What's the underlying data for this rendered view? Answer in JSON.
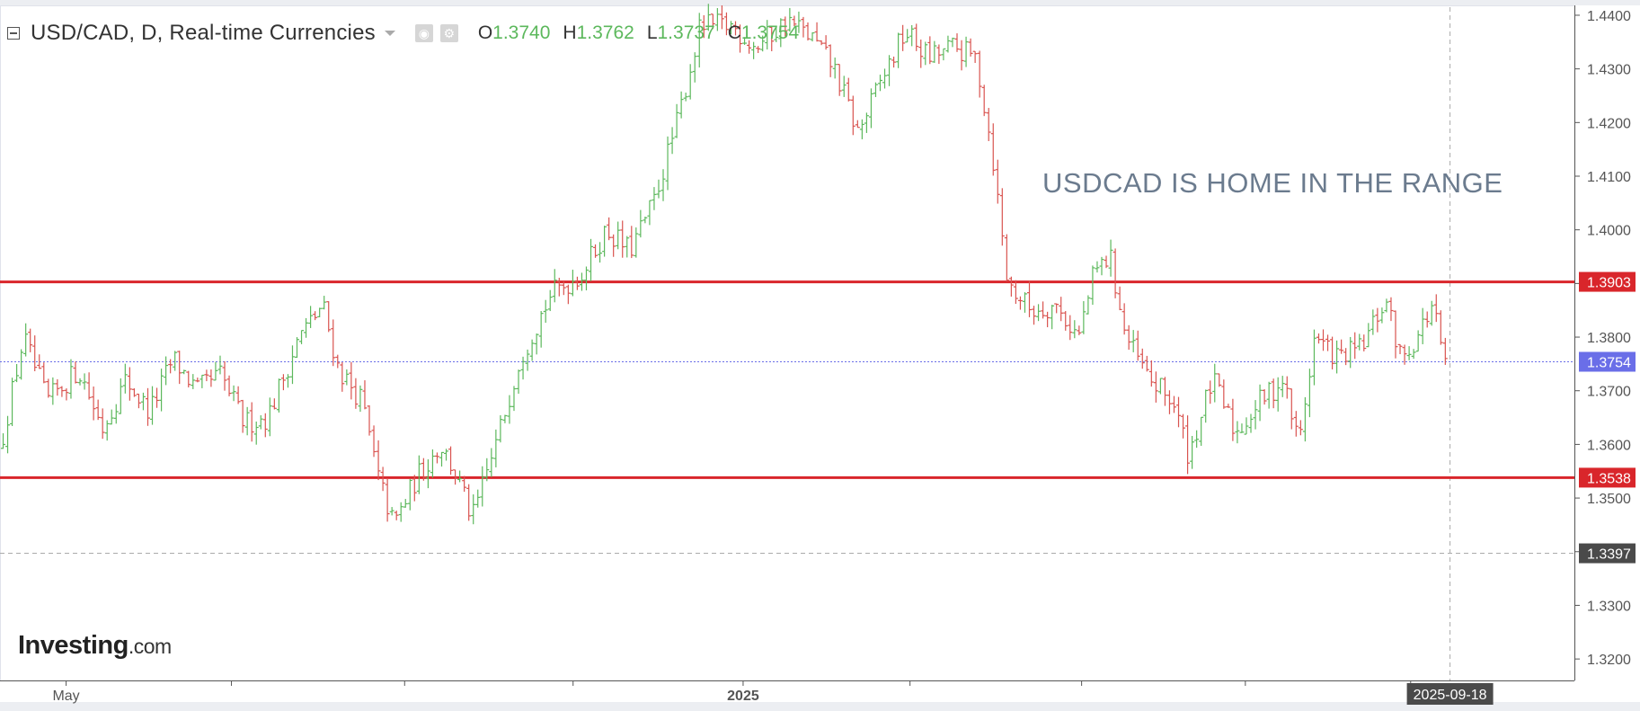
{
  "header": {
    "symbol": "USD/CAD, D, Real-time Currencies",
    "ohlc": [
      {
        "key": "O",
        "value": "1.3740"
      },
      {
        "key": "H",
        "value": "1.3762"
      },
      {
        "key": "L",
        "value": "1.3737"
      },
      {
        "key": "C",
        "value": "1.3754"
      }
    ]
  },
  "annotation": "USDCAD IS HOME IN THE RANGE",
  "watermark": {
    "brand": "Investing",
    "suffix": ".com"
  },
  "colors": {
    "up": "#5cb85c",
    "down": "#d9534f",
    "level_line": "#d9262b",
    "current_price": "#6a6ee8",
    "crosshair": "#aaaaaa",
    "axis_text": "#555555",
    "annotation": "#6b7b8e"
  },
  "chart_data": {
    "type": "ohlc",
    "y_axis": {
      "min": 1.316,
      "max": 1.4415,
      "ticks": [
        "1.4400",
        "1.4300",
        "1.4200",
        "1.4100",
        "1.4000",
        "1.3900",
        "1.3800",
        "1.3700",
        "1.3600",
        "1.3500",
        "1.3400",
        "1.3300",
        "1.3200"
      ]
    },
    "x_axis": {
      "labels": [
        {
          "text": "May",
          "pos": 0.042,
          "bold": false
        },
        {
          "text": "2025",
          "pos": 0.472,
          "bold": true
        }
      ],
      "tick_marks": [
        0.147,
        0.257,
        0.364,
        0.578,
        0.687,
        0.791,
        0.896
      ]
    },
    "levels": [
      {
        "price": 1.3903,
        "label": "1.3903"
      },
      {
        "price": 1.3538,
        "label": "1.3538"
      }
    ],
    "current_price": {
      "price": 1.3754,
      "label": "1.3754"
    },
    "crosshair": {
      "price": 1.3397,
      "label": "1.3397",
      "date_label": "2025-09-18",
      "x_pos": 0.921
    },
    "close_path": [
      [
        0.0,
        1.359
      ],
      [
        0.015,
        1.38
      ],
      [
        0.03,
        1.368
      ],
      [
        0.05,
        1.374
      ],
      [
        0.065,
        1.363
      ],
      [
        0.08,
        1.372
      ],
      [
        0.095,
        1.366
      ],
      [
        0.11,
        1.376
      ],
      [
        0.125,
        1.37
      ],
      [
        0.14,
        1.373
      ],
      [
        0.155,
        1.364
      ],
      [
        0.17,
        1.365
      ],
      [
        0.19,
        1.38
      ],
      [
        0.205,
        1.386
      ],
      [
        0.215,
        1.374
      ],
      [
        0.23,
        1.368
      ],
      [
        0.24,
        1.354
      ],
      [
        0.25,
        1.345
      ],
      [
        0.265,
        1.354
      ],
      [
        0.28,
        1.36
      ],
      [
        0.29,
        1.354
      ],
      [
        0.3,
        1.346
      ],
      [
        0.315,
        1.36
      ],
      [
        0.33,
        1.376
      ],
      [
        0.35,
        1.388
      ],
      [
        0.37,
        1.392
      ],
      [
        0.385,
        1.4
      ],
      [
        0.4,
        1.396
      ],
      [
        0.415,
        1.405
      ],
      [
        0.43,
        1.42
      ],
      [
        0.445,
        1.438
      ],
      [
        0.465,
        1.438
      ],
      [
        0.48,
        1.434
      ],
      [
        0.5,
        1.439
      ],
      [
        0.515,
        1.436
      ],
      [
        0.53,
        1.43
      ],
      [
        0.545,
        1.418
      ],
      [
        0.56,
        1.428
      ],
      [
        0.575,
        1.437
      ],
      [
        0.59,
        1.432
      ],
      [
        0.605,
        1.434
      ],
      [
        0.62,
        1.432
      ],
      [
        0.63,
        1.415
      ],
      [
        0.64,
        1.39
      ],
      [
        0.655,
        1.385
      ],
      [
        0.67,
        1.386
      ],
      [
        0.685,
        1.38
      ],
      [
        0.695,
        1.392
      ],
      [
        0.705,
        1.395
      ],
      [
        0.715,
        1.38
      ],
      [
        0.73,
        1.372
      ],
      [
        0.745,
        1.368
      ],
      [
        0.755,
        1.358
      ],
      [
        0.77,
        1.372
      ],
      [
        0.785,
        1.362
      ],
      [
        0.8,
        1.368
      ],
      [
        0.815,
        1.372
      ],
      [
        0.825,
        1.36
      ],
      [
        0.835,
        1.38
      ],
      [
        0.85,
        1.376
      ],
      [
        0.865,
        1.378
      ],
      [
        0.88,
        1.387
      ],
      [
        0.89,
        1.376
      ],
      [
        0.9,
        1.38
      ],
      [
        0.91,
        1.386
      ],
      [
        0.918,
        1.374
      ]
    ]
  }
}
